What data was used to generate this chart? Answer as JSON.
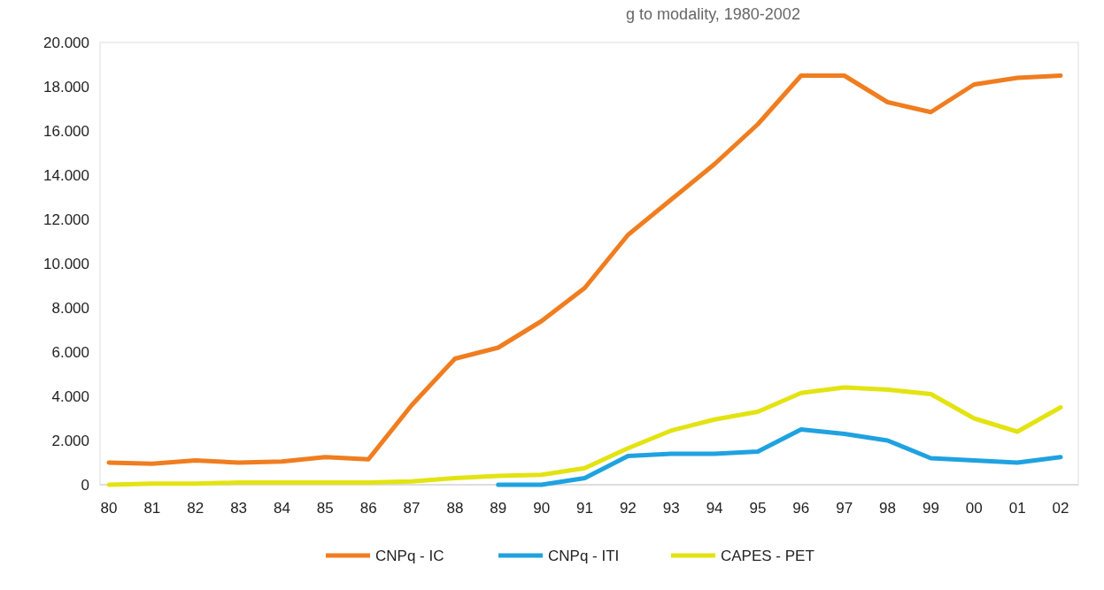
{
  "chart_data": {
    "type": "line",
    "title": "g to modality, 1980-2002",
    "categories": [
      "80",
      "81",
      "82",
      "83",
      "84",
      "85",
      "86",
      "87",
      "88",
      "89",
      "90",
      "91",
      "92",
      "93",
      "94",
      "95",
      "96",
      "97",
      "98",
      "99",
      "00",
      "01",
      "02"
    ],
    "series": [
      {
        "name": "CNPq - IC",
        "color": "#f07d1f",
        "values": [
          1000,
          950,
          1100,
          1000,
          1050,
          1250,
          1150,
          3600,
          5700,
          6200,
          7400,
          8900,
          11300,
          12900,
          14500,
          16300,
          18500,
          18500,
          17300,
          16850,
          18100,
          18400,
          18500
        ]
      },
      {
        "name": "CNPq - ITI",
        "color": "#1fa2e0",
        "values": [
          null,
          null,
          null,
          null,
          null,
          null,
          null,
          null,
          null,
          0,
          0,
          300,
          1300,
          1400,
          1400,
          1500,
          2500,
          2300,
          2000,
          1200,
          1100,
          1000,
          1250
        ]
      },
      {
        "name": "CAPES - PET",
        "color": "#e3e312",
        "values": [
          0,
          50,
          50,
          100,
          100,
          100,
          100,
          150,
          300,
          400,
          450,
          750,
          1650,
          2450,
          2950,
          3300,
          4150,
          4400,
          4300,
          4100,
          3000,
          2400,
          3500
        ]
      }
    ],
    "ylim": [
      0,
      20000
    ],
    "yticks": [
      {
        "value": 0,
        "label": "0"
      },
      {
        "value": 2000,
        "label": "2.000"
      },
      {
        "value": 4000,
        "label": "4.000"
      },
      {
        "value": 6000,
        "label": "6.000"
      },
      {
        "value": 8000,
        "label": "8.000"
      },
      {
        "value": 10000,
        "label": "10.000"
      },
      {
        "value": 12000,
        "label": "12.000"
      },
      {
        "value": 14000,
        "label": "14.000"
      },
      {
        "value": 16000,
        "label": "16.000"
      },
      {
        "value": 18000,
        "label": "18.000"
      },
      {
        "value": 20000,
        "label": "20.000"
      }
    ],
    "legend": "bottom",
    "marker": "none",
    "line_style": "solid"
  }
}
